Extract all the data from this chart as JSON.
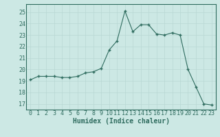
{
  "x": [
    0,
    1,
    2,
    3,
    4,
    5,
    6,
    7,
    8,
    9,
    10,
    11,
    12,
    13,
    14,
    15,
    16,
    17,
    18,
    19,
    20,
    21,
    22,
    23
  ],
  "y": [
    19.1,
    19.4,
    19.4,
    19.4,
    19.3,
    19.3,
    19.4,
    19.7,
    19.8,
    20.1,
    21.7,
    22.5,
    25.1,
    23.3,
    23.9,
    23.9,
    23.1,
    23.0,
    23.2,
    23.0,
    20.0,
    18.5,
    17.0,
    16.9
  ],
  "line_color": "#2e6b5e",
  "marker": "+",
  "markersize": 3.5,
  "linewidth": 0.8,
  "bg_color": "#cce8e4",
  "grid_color": "#b8d8d4",
  "xlabel": "Humidex (Indice chaleur)",
  "xlabel_fontsize": 7,
  "yticks": [
    17,
    18,
    19,
    20,
    21,
    22,
    23,
    24,
    25
  ],
  "xticks": [
    0,
    1,
    2,
    3,
    4,
    5,
    6,
    7,
    8,
    9,
    10,
    11,
    12,
    13,
    14,
    15,
    16,
    17,
    18,
    19,
    20,
    21,
    22,
    23
  ],
  "ylim": [
    16.5,
    25.7
  ],
  "xlim": [
    -0.5,
    23.5
  ],
  "tick_fontsize": 6
}
